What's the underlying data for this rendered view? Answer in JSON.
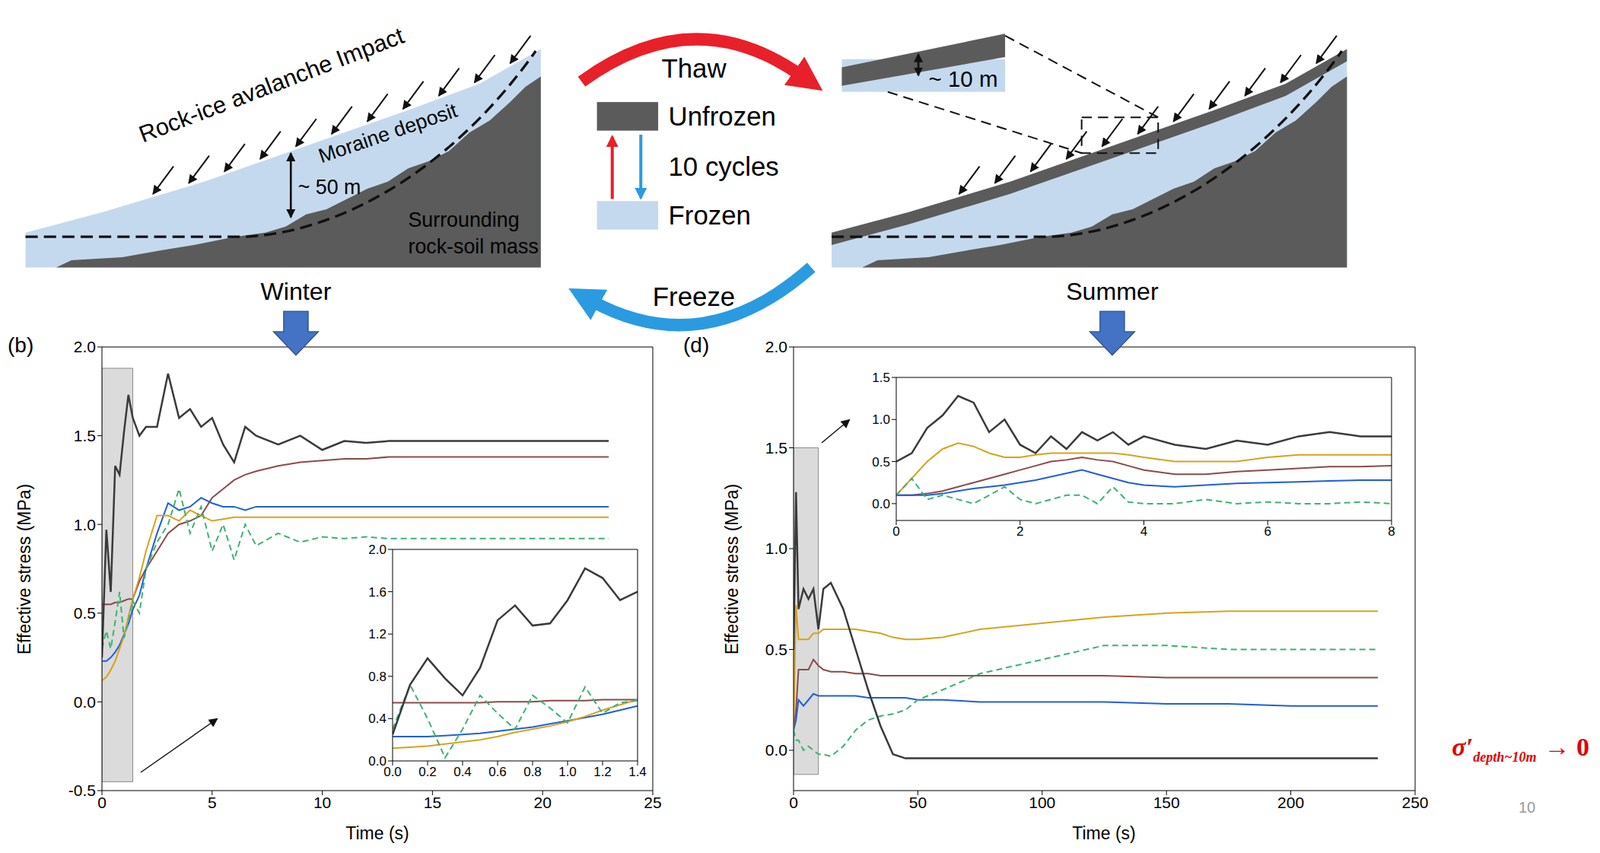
{
  "diagram": {
    "winter": {
      "impact": "Rock-ice avalanche Impact",
      "deposit": "Moraine deposit",
      "depth": "~ 50 m",
      "rock": [
        "Surrounding",
        "rock-soil mass"
      ],
      "season": "Winter"
    },
    "cycle": {
      "thaw": "Thaw",
      "freeze": "Freeze",
      "unfrozen": "Unfrozen",
      "frozen": "Frozen",
      "cycles": "10 cycles"
    },
    "summer": {
      "depth": "~ 10 m",
      "season": "Summer"
    }
  },
  "annotation": {
    "symbol": "σ′",
    "subscript": "depth~10m",
    "tail": "→ 0",
    "color": "#e00000"
  },
  "page_number": 10,
  "chart_data": [
    {
      "type": "line",
      "panel": "(b)",
      "x_label": "Time (s)",
      "y_label": "Effective stress (MPa)",
      "grid": false,
      "xlim": [
        0,
        25
      ],
      "xticks": [
        0,
        5,
        10,
        15,
        20,
        25
      ],
      "ylim": [
        -0.5,
        2.0
      ],
      "yticks": [
        -0.5,
        {
          "value": 0,
          "label": "0.0"
        },
        0.5,
        {
          "value": 1,
          "label": "1.0"
        },
        1.5,
        {
          "value": 2,
          "label": "2.0"
        }
      ],
      "highlight_x": [
        0,
        1.4
      ],
      "highlight_y": [
        -0.45,
        1.88
      ],
      "x": [
        0,
        0.2,
        0.4,
        0.6,
        0.8,
        1.0,
        1.2,
        1.4,
        1.7,
        2,
        2.5,
        3,
        3.5,
        4,
        4.5,
        5,
        5.5,
        6,
        6.5,
        7,
        8,
        9,
        10,
        11,
        12,
        13,
        15,
        17,
        19,
        21,
        23
      ],
      "series": [
        {
          "color": "#8b4a4a",
          "line_style": "solid",
          "values": [
            0.55,
            0.55,
            0.55,
            0.56,
            0.56,
            0.57,
            0.58,
            0.58,
            0.68,
            0.75,
            0.85,
            0.95,
            1.0,
            1.02,
            1.05,
            1.15,
            1.2,
            1.25,
            1.28,
            1.3,
            1.33,
            1.35,
            1.36,
            1.37,
            1.37,
            1.38,
            1.38,
            1.38,
            1.38,
            1.38,
            1.38
          ]
        },
        {
          "color": "#1e5fd8",
          "line_style": "solid",
          "values": [
            0.23,
            0.23,
            0.25,
            0.28,
            0.32,
            0.38,
            0.44,
            0.52,
            0.6,
            0.75,
            0.95,
            1.12,
            1.08,
            1.1,
            1.15,
            1.12,
            1.1,
            1.1,
            1.08,
            1.1,
            1.1,
            1.1,
            1.1,
            1.1,
            1.1,
            1.1,
            1.1,
            1.1,
            1.1,
            1.1,
            1.1
          ]
        },
        {
          "color": "#d8a21c",
          "line_style": "solid",
          "values": [
            0.12,
            0.14,
            0.18,
            0.23,
            0.3,
            0.37,
            0.48,
            0.58,
            0.7,
            0.85,
            1.05,
            1.05,
            1.02,
            1.08,
            1.05,
            1.02,
            1.03,
            1.04,
            1.04,
            1.04,
            1.04,
            1.04,
            1.04,
            1.04,
            1.04,
            1.04,
            1.04,
            1.04,
            1.04,
            1.04,
            1.04
          ]
        },
        {
          "color": "#3cb371",
          "line_style": "dashed",
          "values": [
            0.3,
            0.4,
            0.3,
            0.45,
            0.62,
            0.36,
            0.45,
            0.57,
            0.5,
            0.75,
            0.9,
            1.0,
            1.2,
            0.95,
            1.1,
            0.85,
            1.0,
            0.8,
            1.0,
            0.88,
            0.95,
            0.9,
            0.93,
            0.92,
            0.93,
            0.92,
            0.92,
            0.92,
            0.92,
            0.92,
            0.92
          ]
        },
        {
          "color": "#3a3a3a",
          "line_style": "solid",
          "values": [
            0.25,
            0.97,
            0.62,
            1.33,
            1.28,
            1.52,
            1.73,
            1.6,
            1.5,
            1.55,
            1.55,
            1.85,
            1.6,
            1.65,
            1.55,
            1.6,
            1.45,
            1.35,
            1.55,
            1.5,
            1.45,
            1.5,
            1.42,
            1.47,
            1.46,
            1.47,
            1.47,
            1.47,
            1.47,
            1.47,
            1.47
          ]
        }
      ],
      "inset": {
        "type": "line",
        "grid": false,
        "xlim": [
          0,
          1.4
        ],
        "xticks": [
          {
            "value": 0,
            "label": "0.0"
          },
          0.2,
          0.4,
          0.6,
          0.8,
          {
            "value": 1,
            "label": "1.0"
          },
          1.2,
          1.4
        ],
        "ylim": [
          0,
          2.0
        ],
        "yticks": [
          {
            "value": 0,
            "label": "0.0"
          },
          0.4,
          0.8,
          1.2,
          1.6,
          {
            "value": 2,
            "label": "2.0"
          }
        ],
        "x": [
          0,
          0.1,
          0.2,
          0.3,
          0.4,
          0.5,
          0.6,
          0.7,
          0.8,
          0.9,
          1.0,
          1.1,
          1.2,
          1.3,
          1.4
        ],
        "series": [
          {
            "color": "#8b4a4a",
            "line_style": "solid",
            "values": [
              0.55,
              0.55,
              0.55,
              0.55,
              0.55,
              0.55,
              0.56,
              0.56,
              0.56,
              0.57,
              0.57,
              0.57,
              0.58,
              0.58,
              0.58
            ]
          },
          {
            "color": "#1e5fd8",
            "line_style": "solid",
            "values": [
              0.23,
              0.23,
              0.23,
              0.24,
              0.25,
              0.26,
              0.28,
              0.3,
              0.32,
              0.35,
              0.38,
              0.41,
              0.44,
              0.48,
              0.52
            ]
          },
          {
            "color": "#d8a21c",
            "line_style": "solid",
            "values": [
              0.12,
              0.13,
              0.14,
              0.16,
              0.18,
              0.2,
              0.23,
              0.27,
              0.3,
              0.33,
              0.37,
              0.42,
              0.48,
              0.53,
              0.58
            ]
          },
          {
            "color": "#3cb371",
            "line_style": "dashed",
            "values": [
              0.3,
              0.72,
              0.4,
              0.03,
              0.3,
              0.62,
              0.45,
              0.3,
              0.62,
              0.5,
              0.36,
              0.7,
              0.45,
              0.55,
              0.57
            ]
          },
          {
            "color": "#3a3a3a",
            "line_style": "solid",
            "values": [
              0.25,
              0.72,
              0.97,
              0.78,
              0.62,
              0.88,
              1.33,
              1.47,
              1.28,
              1.3,
              1.52,
              1.82,
              1.73,
              1.52,
              1.6
            ]
          }
        ]
      }
    },
    {
      "type": "line",
      "panel": "(d)",
      "x_label": "Time (s)",
      "y_label": "Effective stress (MPa)",
      "grid": false,
      "xlim": [
        0,
        250
      ],
      "xticks": [
        0,
        50,
        100,
        150,
        200,
        250
      ],
      "ylim": [
        -0.2,
        2.0
      ],
      "yticks": [
        {
          "value": 0,
          "label": "0.0"
        },
        0.5,
        {
          "value": 1,
          "label": "1.0"
        },
        1.5,
        {
          "value": 2,
          "label": "2.0"
        }
      ],
      "highlight_x": [
        0,
        10
      ],
      "highlight_y": [
        -0.12,
        1.5
      ],
      "x": [
        0,
        1,
        2,
        4,
        6,
        8,
        10,
        12,
        15,
        20,
        25,
        30,
        35,
        40,
        45,
        50,
        60,
        75,
        100,
        125,
        150,
        175,
        200,
        235
      ],
      "series": [
        {
          "color": "#8b4a4a",
          "line_style": "solid",
          "values": [
            0.1,
            0.2,
            0.4,
            0.4,
            0.4,
            0.45,
            0.42,
            0.4,
            0.39,
            0.39,
            0.38,
            0.38,
            0.37,
            0.37,
            0.37,
            0.37,
            0.37,
            0.37,
            0.37,
            0.37,
            0.36,
            0.36,
            0.36,
            0.36
          ]
        },
        {
          "color": "#1e5fd8",
          "line_style": "solid",
          "values": [
            0.1,
            0.15,
            0.25,
            0.22,
            0.25,
            0.28,
            0.27,
            0.27,
            0.27,
            0.27,
            0.27,
            0.26,
            0.26,
            0.26,
            0.26,
            0.25,
            0.25,
            0.24,
            0.24,
            0.24,
            0.23,
            0.23,
            0.22,
            0.22
          ]
        },
        {
          "color": "#d8a21c",
          "line_style": "solid",
          "values": [
            0.1,
            0.72,
            0.55,
            0.55,
            0.55,
            0.58,
            0.58,
            0.6,
            0.6,
            0.6,
            0.6,
            0.59,
            0.58,
            0.56,
            0.55,
            0.55,
            0.56,
            0.6,
            0.63,
            0.66,
            0.68,
            0.69,
            0.69,
            0.69
          ]
        },
        {
          "color": "#3cb371",
          "line_style": "dashed",
          "values": [
            0.1,
            0.05,
            0.05,
            0.0,
            0.02,
            0.0,
            -0.02,
            -0.02,
            -0.03,
            0.02,
            0.1,
            0.15,
            0.17,
            0.18,
            0.2,
            0.25,
            0.3,
            0.38,
            0.45,
            0.52,
            0.52,
            0.5,
            0.5,
            0.5
          ]
        },
        {
          "color": "#3a3a3a",
          "line_style": "solid",
          "values": [
            0.5,
            1.28,
            0.7,
            0.8,
            0.75,
            0.8,
            0.6,
            0.8,
            0.83,
            0.7,
            0.5,
            0.3,
            0.12,
            -0.02,
            -0.04,
            -0.04,
            -0.04,
            -0.04,
            -0.04,
            -0.04,
            -0.04,
            -0.04,
            -0.04,
            -0.04
          ]
        }
      ],
      "inset": {
        "type": "line",
        "grid": false,
        "xlim": [
          0,
          8
        ],
        "xticks": [
          0,
          2,
          4,
          6,
          8
        ],
        "ylim": [
          -0.2,
          1.5
        ],
        "yticks": [
          {
            "value": 0,
            "label": "0.0"
          },
          0.5,
          {
            "value": 1,
            "label": "1.0"
          },
          1.5
        ],
        "x": [
          0,
          0.25,
          0.5,
          0.75,
          1,
          1.25,
          1.5,
          1.75,
          2,
          2.25,
          2.5,
          2.75,
          3,
          3.25,
          3.5,
          3.75,
          4,
          4.5,
          5,
          5.5,
          6,
          6.5,
          7,
          7.5,
          8
        ],
        "series": [
          {
            "color": "#8b4a4a",
            "line_style": "solid",
            "values": [
              0.1,
              0.1,
              0.12,
              0.15,
              0.2,
              0.25,
              0.3,
              0.35,
              0.4,
              0.45,
              0.5,
              0.52,
              0.55,
              0.52,
              0.5,
              0.45,
              0.4,
              0.35,
              0.35,
              0.38,
              0.4,
              0.42,
              0.44,
              0.44,
              0.45
            ]
          },
          {
            "color": "#1e5fd8",
            "line_style": "solid",
            "values": [
              0.1,
              0.1,
              0.1,
              0.12,
              0.15,
              0.18,
              0.2,
              0.22,
              0.25,
              0.28,
              0.32,
              0.36,
              0.4,
              0.35,
              0.3,
              0.25,
              0.22,
              0.2,
              0.22,
              0.24,
              0.25,
              0.26,
              0.27,
              0.28,
              0.28
            ]
          },
          {
            "color": "#d8a21c",
            "line_style": "solid",
            "values": [
              0.1,
              0.3,
              0.5,
              0.65,
              0.72,
              0.68,
              0.6,
              0.55,
              0.55,
              0.58,
              0.6,
              0.6,
              0.6,
              0.6,
              0.6,
              0.58,
              0.55,
              0.5,
              0.5,
              0.5,
              0.55,
              0.58,
              0.58,
              0.58,
              0.58
            ]
          },
          {
            "color": "#3cb371",
            "line_style": "dashed",
            "values": [
              0.1,
              0.3,
              0.05,
              0.1,
              0.05,
              0.0,
              0.1,
              0.2,
              0.05,
              0.0,
              0.05,
              0.1,
              0.1,
              0.0,
              0.2,
              0.02,
              0.0,
              0.0,
              0.05,
              0.0,
              0.02,
              0.0,
              0.0,
              0.02,
              0.0
            ]
          },
          {
            "color": "#3a3a3a",
            "line_style": "solid",
            "values": [
              0.5,
              0.6,
              0.9,
              1.05,
              1.28,
              1.2,
              0.85,
              1.0,
              0.7,
              0.6,
              0.8,
              0.65,
              0.85,
              0.75,
              0.85,
              0.7,
              0.8,
              0.7,
              0.65,
              0.75,
              0.7,
              0.8,
              0.85,
              0.8,
              0.8
            ]
          }
        ]
      }
    }
  ]
}
